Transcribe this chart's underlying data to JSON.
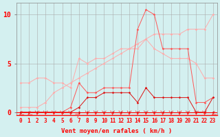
{
  "x": [
    0,
    1,
    2,
    3,
    4,
    5,
    6,
    7,
    8,
    9,
    10,
    11,
    12,
    13,
    14,
    15,
    16,
    17,
    18,
    19,
    20,
    21,
    22,
    23
  ],
  "background_color": "#d4f0f0",
  "grid_color": "#aaaaaa",
  "xlabel": "Vent moyen/en rafales ( km/h )",
  "ylabel_ticks": [
    0,
    5,
    10
  ],
  "ylim": [
    -0.3,
    11.2
  ],
  "xlim": [
    -0.5,
    23.5
  ],
  "line1_color": "#ffaaaa",
  "line2_color": "#ffaaaa",
  "line3_color": "#ff5555",
  "line4_color": "#dd1111",
  "line5_color": "#dd1111",
  "line6_color": "#990000",
  "arrow_color": "#ff3333",
  "line1_values": [
    3.0,
    3.0,
    3.5,
    3.5,
    3.0,
    3.0,
    2.5,
    5.5,
    5.0,
    5.5,
    5.5,
    6.0,
    6.5,
    6.5,
    6.5,
    7.5,
    6.5,
    6.0,
    5.5,
    5.5,
    5.5,
    5.0,
    3.5,
    3.5
  ],
  "line2_values": [
    0.5,
    0.5,
    0.5,
    1.0,
    2.0,
    2.5,
    3.0,
    3.5,
    4.0,
    4.5,
    5.0,
    5.5,
    6.0,
    6.5,
    7.0,
    7.5,
    8.0,
    8.0,
    8.0,
    8.0,
    8.5,
    8.5,
    8.5,
    10.0
  ],
  "line3_values": [
    0.0,
    0.0,
    0.0,
    0.0,
    0.0,
    0.0,
    0.5,
    3.0,
    2.0,
    2.0,
    2.5,
    2.5,
    2.5,
    2.5,
    8.5,
    10.5,
    10.0,
    6.5,
    6.5,
    6.5,
    6.5,
    1.0,
    1.0,
    1.5
  ],
  "line4_values": [
    0.0,
    0.0,
    0.0,
    0.0,
    0.0,
    0.0,
    0.0,
    0.5,
    1.5,
    1.5,
    2.0,
    2.0,
    2.0,
    2.0,
    1.0,
    2.5,
    1.5,
    1.5,
    1.5,
    1.5,
    1.5,
    0.0,
    0.0,
    1.5
  ],
  "line5_values": [
    0.0,
    0.0,
    0.0,
    0.0,
    0.0,
    0.0,
    0.0,
    0.0,
    0.0,
    0.0,
    0.0,
    0.0,
    0.0,
    0.0,
    0.0,
    0.0,
    0.0,
    0.0,
    0.0,
    0.0,
    0.0,
    0.0,
    0.0,
    0.0
  ],
  "line6_values": [
    0.0,
    0.0,
    0.0,
    0.0,
    0.0,
    0.0,
    0.0,
    0.0,
    0.0,
    0.0,
    0.0,
    0.0,
    0.0,
    0.0,
    0.0,
    0.0,
    0.0,
    0.0,
    0.0,
    0.0,
    0.0,
    0.0,
    0.0,
    0.0
  ],
  "arrow_angles": [
    225,
    225,
    270,
    270,
    270,
    270,
    270,
    45,
    270,
    270,
    270,
    270,
    270,
    270,
    270,
    270,
    270,
    270,
    270,
    270,
    270,
    270,
    270,
    225
  ],
  "tick_fontsize": 5.5,
  "xlabel_fontsize": 6.5,
  "ytick_fontsize": 7,
  "marker_size": 1.8
}
